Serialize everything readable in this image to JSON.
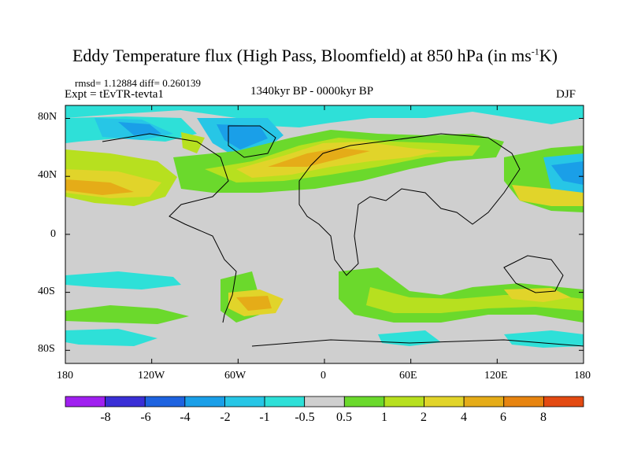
{
  "title_main": "Eddy Temperature flux (High Pass, Bloomfield) at 850 hPa (in ms",
  "title_sup": "-1",
  "title_end": "K)",
  "stats": "rmsd= 1.12884 diff= 0.260139",
  "experiment": "Expt = tEvTR-tevta1",
  "period": "1340kyr BP - 0000kyr BP",
  "season": "DJF",
  "lat_ticks": [
    "80N",
    "40N",
    "0",
    "40S",
    "80S"
  ],
  "lon_ticks": [
    "180",
    "120W",
    "60W",
    "0",
    "60E",
    "120E",
    "180"
  ],
  "colorbar": {
    "labels": [
      "-8",
      "-6",
      "-4",
      "-2",
      "-1",
      "-0.5",
      "0.5",
      "1",
      "2",
      "4",
      "6",
      "8"
    ],
    "colors": [
      "#a020f0",
      "#3a2fd6",
      "#1e63e0",
      "#1a9fe8",
      "#27c6e6",
      "#2ee0d8",
      "#cfcfcf",
      "#6bd92c",
      "#b7e01f",
      "#e1d42a",
      "#e5ac18",
      "#e78410",
      "#e34a12"
    ]
  }
}
